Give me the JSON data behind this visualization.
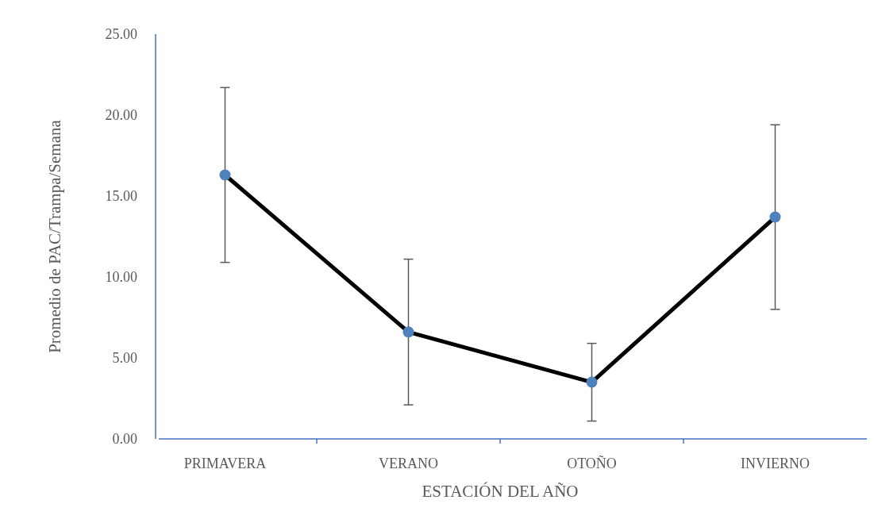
{
  "chart_data": {
    "type": "line",
    "xlabel": "ESTACIÓN DEL AÑO",
    "ylabel": "Promedio de PAC/Trampa/Semana",
    "categories": [
      "PRIMAVERA",
      "VERANO",
      "OTOÑO",
      "INVIERNO"
    ],
    "series": [
      {
        "color": "#000000",
        "colors": [
          "#4f81bd",
          "#4f81bd",
          "#4f81bd",
          "#4f81bd"
        ],
        "values": [
          16.3,
          6.6,
          3.5,
          13.7
        ],
        "errors": [
          5.4,
          4.5,
          2.4,
          5.7
        ]
      }
    ],
    "ylim": [
      0,
      25
    ],
    "yticks": [
      {
        "value": 0,
        "label": "0.00"
      },
      {
        "value": 5,
        "label": "5.00"
      },
      {
        "value": 10,
        "label": "10.00"
      },
      {
        "value": 15,
        "label": "15.00"
      },
      {
        "value": 20,
        "label": "20.00"
      },
      {
        "value": 25,
        "label": "25.00"
      }
    ],
    "grid": false,
    "marker": "circle",
    "line_style": "solid"
  }
}
